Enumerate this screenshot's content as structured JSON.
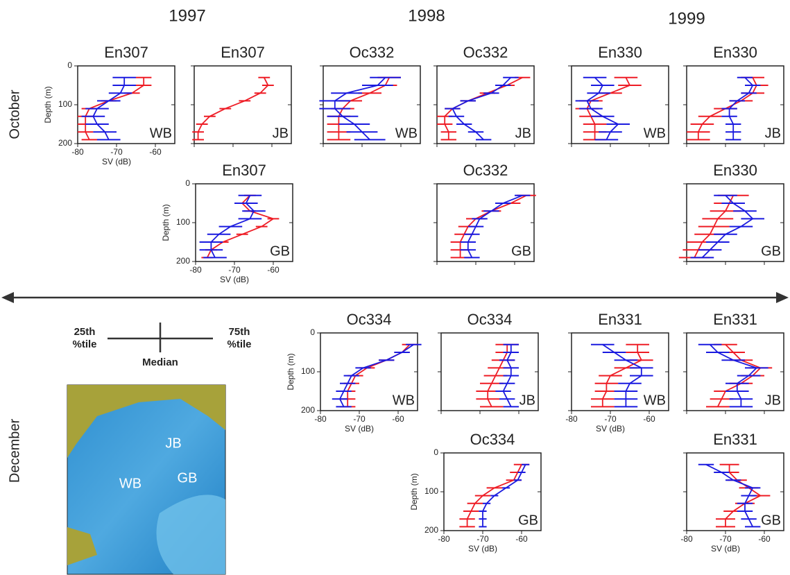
{
  "years": [
    "1997",
    "1998",
    "1999"
  ],
  "months": [
    "October",
    "December"
  ],
  "legend": {
    "low": [
      "25th",
      "%tile"
    ],
    "high": [
      "75th",
      "%tile"
    ],
    "median": "Median"
  },
  "map_labels": [
    "JB",
    "WB",
    "GB"
  ],
  "chart_data": [
    {
      "type": "line",
      "title": "En307",
      "region": "WB",
      "xlabel": "SV (dB)",
      "ylabel": "Depth (m)",
      "y": [
        30,
        50,
        70,
        90,
        110,
        130,
        150,
        170,
        190
      ],
      "xlim": [
        -80,
        -55
      ],
      "ylim": [
        0,
        200
      ],
      "xticks": [
        -80,
        -70,
        -60
      ],
      "yticks": [
        0,
        100,
        200
      ],
      "series": [
        {
          "color": "#ee1c25",
          "values": [
            -63,
            -63,
            -66,
            -72,
            -77,
            -78,
            -78,
            -78,
            -77
          ],
          "err": 2
        },
        {
          "color": "#1a1adf",
          "values": [
            -68,
            -68,
            -69,
            -72,
            -75,
            -76,
            -75,
            -73,
            -72
          ],
          "err": 3
        }
      ]
    },
    {
      "type": "line",
      "title": "En307",
      "region": "JB",
      "y": [
        30,
        50,
        70,
        90,
        110,
        130,
        150,
        170,
        190
      ],
      "xlim": [
        -80,
        -55
      ],
      "ylim": [
        0,
        200
      ],
      "xticks": [
        -80,
        -70,
        -60
      ],
      "yticks": [
        0,
        100,
        200
      ],
      "series": [
        {
          "color": "#ee1c25",
          "values": [
            -62,
            -61,
            -63,
            -67,
            -72,
            -76,
            -78,
            -79,
            -79
          ],
          "err": 1.5
        }
      ]
    },
    {
      "type": "line",
      "title": "Oc332",
      "region": "WB",
      "y": [
        30,
        50,
        70,
        90,
        110,
        130,
        150,
        170,
        190
      ],
      "xlim": [
        -80,
        -55
      ],
      "ylim": [
        0,
        200
      ],
      "xticks": [
        -80,
        -70,
        -60
      ],
      "yticks": [
        0,
        100,
        200
      ],
      "series": [
        {
          "color": "#ee1c25",
          "values": [
            -63,
            -64,
            -68,
            -73,
            -75,
            -76,
            -76,
            -76,
            -76
          ],
          "err": 3
        },
        {
          "color": "#1a1adf",
          "values": [
            -64,
            -66,
            -74,
            -77,
            -77,
            -75,
            -72,
            -70,
            -68
          ],
          "err": 4
        }
      ]
    },
    {
      "type": "line",
      "title": "Oc332",
      "region": "JB",
      "y": [
        30,
        50,
        70,
        90,
        110,
        130,
        150,
        170,
        190
      ],
      "xlim": [
        -80,
        -55
      ],
      "ylim": [
        0,
        200
      ],
      "xticks": [
        -80,
        -70,
        -60
      ],
      "yticks": [
        0,
        100,
        200
      ],
      "series": [
        {
          "color": "#ee1c25",
          "values": [
            -58,
            -62,
            -67,
            -72,
            -76,
            -78,
            -78,
            -77,
            -77
          ],
          "err": 2
        },
        {
          "color": "#1a1adf",
          "values": [
            -61,
            -63,
            -66,
            -72,
            -76,
            -75,
            -73,
            -70,
            -68
          ],
          "err": 2
        }
      ]
    },
    {
      "type": "line",
      "title": "En330",
      "region": "WB",
      "y": [
        30,
        50,
        70,
        90,
        110,
        130,
        150,
        170,
        190
      ],
      "xlim": [
        -80,
        -55
      ],
      "ylim": [
        0,
        200
      ],
      "xticks": [
        -80,
        -70,
        -60
      ],
      "yticks": [
        0,
        100,
        200
      ],
      "series": [
        {
          "color": "#ee1c25",
          "values": [
            -66,
            -65,
            -70,
            -75,
            -76,
            -75,
            -74,
            -74,
            -74
          ],
          "err": 3
        },
        {
          "color": "#1a1adf",
          "values": [
            -74,
            -72,
            -73,
            -76,
            -75,
            -72,
            -68,
            -70,
            -71
          ],
          "err": 3
        }
      ]
    },
    {
      "type": "line",
      "title": "En330",
      "region": "JB",
      "y": [
        30,
        50,
        70,
        90,
        110,
        130,
        150,
        170,
        190
      ],
      "xlim": [
        -80,
        -55
      ],
      "ylim": [
        0,
        200
      ],
      "xticks": [
        -80,
        -70,
        -60
      ],
      "yticks": [
        0,
        100,
        200
      ],
      "series": [
        {
          "color": "#ee1c25",
          "values": [
            -63,
            -62,
            -63,
            -66,
            -70,
            -74,
            -76,
            -77,
            -77
          ],
          "err": 3
        },
        {
          "color": "#1a1adf",
          "values": [
            -65,
            -63,
            -64,
            -67,
            -69,
            -69,
            -68,
            -68,
            -68
          ],
          "err": 2
        }
      ]
    },
    {
      "type": "line",
      "title": "En307",
      "region": "GB",
      "xlabel": "SV (dB)",
      "ylabel": "Depth (m)",
      "y": [
        30,
        50,
        70,
        90,
        110,
        130,
        150,
        170,
        190
      ],
      "xlim": [
        -80,
        -55
      ],
      "ylim": [
        0,
        200
      ],
      "xticks": [
        -80,
        -70,
        -60
      ],
      "yticks": [
        0,
        100,
        200
      ],
      "series": [
        {
          "color": "#ee1c25",
          "values": [
            -66,
            -68,
            -66,
            -60,
            -63,
            -68,
            -73,
            -76,
            -77
          ],
          "err": 1.5
        },
        {
          "color": "#1a1adf",
          "values": [
            -66,
            -67,
            -65,
            -66,
            -71,
            -74,
            -76,
            -76,
            -75
          ],
          "err": 3
        }
      ]
    },
    {
      "type": "line",
      "title": "Oc332",
      "region": "GB",
      "y": [
        30,
        50,
        70,
        90,
        110,
        130,
        150,
        170,
        190
      ],
      "xlim": [
        -80,
        -55
      ],
      "ylim": [
        0,
        200
      ],
      "xticks": [
        -80,
        -70,
        -60
      ],
      "yticks": [
        0,
        100,
        200
      ],
      "series": [
        {
          "color": "#ee1c25",
          "values": [
            -57,
            -61,
            -66,
            -70,
            -72,
            -73,
            -74,
            -74,
            -74
          ],
          "err": 2.5
        },
        {
          "color": "#1a1adf",
          "values": [
            -58,
            -63,
            -66,
            -69,
            -70,
            -71,
            -72,
            -72,
            -71
          ],
          "err": 2
        }
      ]
    },
    {
      "type": "line",
      "title": "En330",
      "region": "GB",
      "y": [
        30,
        50,
        70,
        90,
        110,
        130,
        150,
        170,
        190
      ],
      "xlim": [
        -80,
        -55
      ],
      "ylim": [
        0,
        200
      ],
      "xticks": [
        -80,
        -70,
        -60
      ],
      "yticks": [
        0,
        100,
        200
      ],
      "series": [
        {
          "color": "#ee1c25",
          "values": [
            -68,
            -69,
            -70,
            -72,
            -73,
            -74,
            -76,
            -77,
            -78
          ],
          "err": 4
        },
        {
          "color": "#1a1adf",
          "values": [
            -70,
            -68,
            -65,
            -63,
            -66,
            -70,
            -72,
            -74,
            -76
          ],
          "err": 3
        }
      ]
    },
    {
      "type": "line",
      "title": "Oc334",
      "region": "WB",
      "xlabel": "SV (dB)",
      "ylabel": "Depth (m)",
      "y": [
        30,
        50,
        70,
        90,
        110,
        130,
        150,
        170,
        190
      ],
      "xlim": [
        -80,
        -55
      ],
      "ylim": [
        0,
        200
      ],
      "xticks": [
        -80,
        -70,
        -60
      ],
      "yticks": [
        0,
        100,
        200
      ],
      "series": [
        {
          "color": "#ee1c25",
          "values": [
            -57,
            -59,
            -63,
            -68,
            -71,
            -72,
            -73,
            -73,
            -73
          ],
          "err": 2
        },
        {
          "color": "#1a1adf",
          "values": [
            -56,
            -59,
            -63,
            -69,
            -72,
            -73,
            -74,
            -75,
            -74
          ],
          "err": 2
        }
      ]
    },
    {
      "type": "line",
      "title": "Oc334",
      "region": "JB",
      "y": [
        30,
        50,
        70,
        90,
        110,
        130,
        150,
        170,
        190
      ],
      "xlim": [
        -80,
        -55
      ],
      "ylim": [
        0,
        200
      ],
      "xticks": [
        -80,
        -70,
        -60
      ],
      "yticks": [
        0,
        100,
        200
      ],
      "series": [
        {
          "color": "#ee1c25",
          "values": [
            -63,
            -63,
            -64,
            -65,
            -66,
            -67,
            -68,
            -68,
            -67
          ],
          "err": 3
        },
        {
          "color": "#1a1adf",
          "values": [
            -62,
            -62,
            -63,
            -62,
            -62,
            -63,
            -64,
            -63,
            -62
          ],
          "err": 2
        }
      ]
    },
    {
      "type": "line",
      "title": "En331",
      "region": "WB",
      "xlabel": "SV (dB)",
      "y": [
        30,
        50,
        70,
        90,
        110,
        130,
        150,
        170,
        190
      ],
      "xlim": [
        -80,
        -55
      ],
      "ylim": [
        0,
        200
      ],
      "xticks": [
        -80,
        -70,
        -60
      ],
      "yticks": [
        0,
        100,
        200
      ],
      "series": [
        {
          "color": "#ee1c25",
          "values": [
            -63,
            -63,
            -62,
            -66,
            -70,
            -71,
            -71,
            -72,
            -72
          ],
          "err": 3
        },
        {
          "color": "#1a1adf",
          "values": [
            -72,
            -69,
            -66,
            -62,
            -62,
            -65,
            -66,
            -66,
            -66
          ],
          "err": 3
        }
      ]
    },
    {
      "type": "line",
      "title": "En331",
      "region": "JB",
      "y": [
        30,
        50,
        70,
        90,
        110,
        130,
        150,
        170,
        190
      ],
      "xlim": [
        -80,
        -55
      ],
      "ylim": [
        0,
        200
      ],
      "xticks": [
        -80,
        -70,
        -60
      ],
      "yticks": [
        0,
        100,
        200
      ],
      "series": [
        {
          "color": "#ee1c25",
          "values": [
            -70,
            -68,
            -66,
            -61,
            -63,
            -66,
            -70,
            -71,
            -72
          ],
          "err": 3
        },
        {
          "color": "#1a1adf",
          "values": [
            -74,
            -72,
            -68,
            -62,
            -64,
            -67,
            -67,
            -66,
            -66
          ],
          "err": 3
        }
      ]
    },
    {
      "type": "line",
      "title": "Oc334",
      "region": "GB",
      "xlabel": "SV (dB)",
      "ylabel": "Depth (m)",
      "y": [
        30,
        50,
        70,
        90,
        110,
        130,
        150,
        170,
        190
      ],
      "xlim": [
        -80,
        -55
      ],
      "ylim": [
        0,
        200
      ],
      "xticks": [
        -80,
        -70,
        -60
      ],
      "yticks": [
        0,
        100,
        200
      ],
      "series": [
        {
          "color": "#ee1c25",
          "values": [
            -60,
            -61,
            -62,
            -67,
            -70,
            -72,
            -73,
            -74,
            -74
          ],
          "err": 2
        },
        {
          "color": "#1a1adf",
          "values": [
            -59,
            -60,
            -61,
            -64,
            -67,
            -69,
            -70,
            -70,
            -70
          ],
          "err": 1
        }
      ]
    },
    {
      "type": "line",
      "title": "En331",
      "region": "GB",
      "xlabel": "SV (dB)",
      "y": [
        30,
        50,
        70,
        90,
        110,
        130,
        150,
        170,
        190
      ],
      "xlim": [
        -80,
        -55
      ],
      "ylim": [
        0,
        200
      ],
      "xticks": [
        -80,
        -70,
        -60
      ],
      "yticks": [
        0,
        100,
        200
      ],
      "series": [
        {
          "color": "#ee1c25",
          "values": [
            -69,
            -69,
            -67,
            -64,
            -61,
            -65,
            -68,
            -70,
            -70
          ],
          "err": 2.5
        },
        {
          "color": "#1a1adf",
          "values": [
            -75,
            -71,
            -68,
            -63,
            -64,
            -65,
            -65,
            -64,
            -63
          ],
          "err": 2
        }
      ]
    }
  ]
}
